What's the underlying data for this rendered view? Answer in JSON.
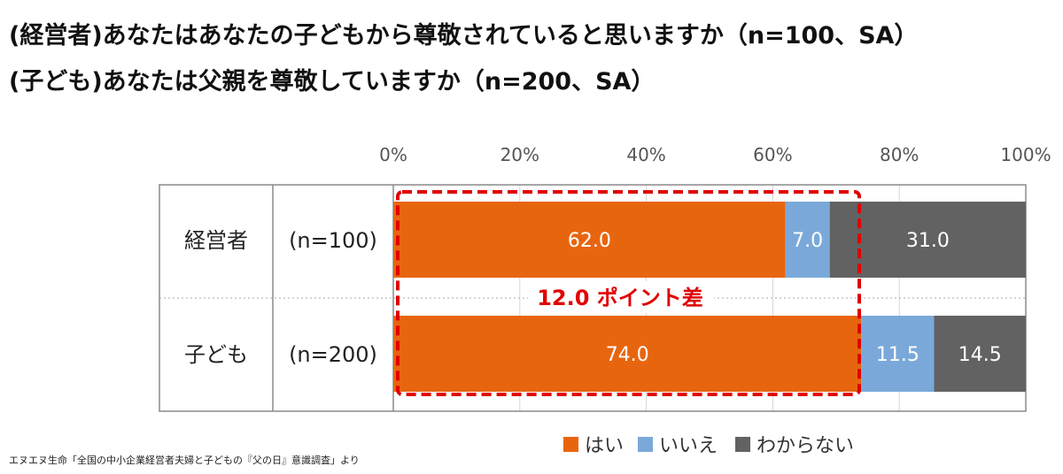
{
  "titles": {
    "line1": "(経営者)あなたはあなたの子どもから尊敬されていると思いますか（n=100、SA）",
    "line2": "(子ども)あなたは父親を尊敬していますか（n=200、SA）"
  },
  "source": "エヌエヌ生命「全国の中小企業経営者夫婦と子どもの『父の日』意識調査」より",
  "annotation": "12.0 ポイント差",
  "chart_data": {
    "type": "bar",
    "orientation": "horizontal",
    "stacked": true,
    "xlim": [
      0,
      100
    ],
    "x_ticks": [
      "0%",
      "20%",
      "40%",
      "60%",
      "80%",
      "100%"
    ],
    "categories": [
      "経営者",
      "子ども"
    ],
    "sample_sizes": [
      "(n=100)",
      "(n=200)"
    ],
    "series": [
      {
        "name": "はい",
        "color": "#e8650f",
        "values": [
          62.0,
          74.0
        ],
        "labels": [
          "62.0",
          "74.0"
        ]
      },
      {
        "name": "いいえ",
        "color": "#7aa9d9",
        "values": [
          7.0,
          11.5
        ],
        "labels": [
          "7.0",
          "11.5"
        ]
      },
      {
        "name": "わからない",
        "color": "#626262",
        "values": [
          31.0,
          14.5
        ],
        "labels": [
          "31.0",
          "14.5"
        ]
      }
    ],
    "grid": true,
    "legend_position": "bottom"
  }
}
